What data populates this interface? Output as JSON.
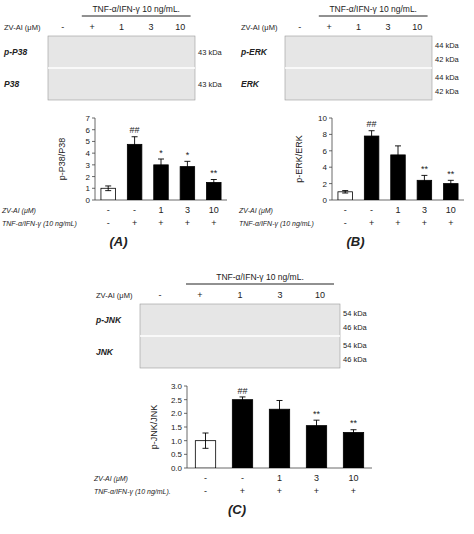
{
  "chart_data": [
    {
      "type": "bar",
      "title": "(A)",
      "y_label": "p-P38/P38",
      "categories": [
        "-",
        "-",
        "1",
        "3",
        "10"
      ],
      "category_label": "ZV-AI (μM)",
      "categories2": [
        "-",
        "+",
        "+",
        "+",
        "+"
      ],
      "category_label2": "TNF-α/IFN-γ (10 ng/mL)",
      "values": [
        1.0,
        4.75,
        3.0,
        2.85,
        1.5
      ],
      "errors": [
        0.2,
        0.65,
        0.5,
        0.45,
        0.25
      ],
      "colors": [
        "white",
        "black",
        "black",
        "black",
        "black"
      ],
      "annotations": [
        null,
        "##",
        "*",
        "*",
        "**"
      ],
      "ylim": [
        0,
        7
      ],
      "yticks": [
        0,
        1,
        2,
        3,
        4,
        5,
        6,
        7
      ],
      "grid": false,
      "blot": {
        "header": "TNF-α/IFN-γ 10 ng/mL.",
        "lane_label": "ZV-AI (μM)",
        "lanes": [
          "-",
          "+",
          "1",
          "3",
          "10"
        ],
        "rows": [
          {
            "name": "p-P38",
            "kda": [
              "43 kDa"
            ]
          },
          {
            "name": "P38",
            "kda": [
              "43 kDa"
            ]
          }
        ]
      }
    },
    {
      "type": "bar",
      "title": "(B)",
      "y_label": "p-ERK/ERK",
      "categories": [
        "-",
        "-",
        "1",
        "3",
        "10"
      ],
      "category_label": "ZV-AI (μM)",
      "categories2": [
        "-",
        "+",
        "+",
        "+",
        "+"
      ],
      "category_label2": "TNF-α/IFN-γ (10 ng/mL)",
      "values": [
        1.0,
        7.8,
        5.5,
        2.4,
        2.0
      ],
      "errors": [
        0.15,
        0.65,
        1.1,
        0.6,
        0.4
      ],
      "colors": [
        "white",
        "black",
        "black",
        "black",
        "black"
      ],
      "annotations": [
        null,
        "##",
        null,
        "**",
        "**"
      ],
      "ylim": [
        0,
        10
      ],
      "yticks": [
        0,
        2,
        4,
        6,
        8,
        10
      ],
      "grid": false,
      "blot": {
        "header": "TNF-α/IFN-γ 10 ng/mL.",
        "lane_label": "ZV-AI (μM)",
        "lanes": [
          "-",
          "+",
          "1",
          "3",
          "10"
        ],
        "rows": [
          {
            "name": "p-ERK",
            "kda": [
              "44 kDa",
              "42 kDa"
            ]
          },
          {
            "name": "ERK",
            "kda": [
              "44 kDa",
              "42 kDa"
            ]
          }
        ]
      }
    },
    {
      "type": "bar",
      "title": "(C)",
      "y_label": "p-JNK/JNK",
      "categories": [
        "-",
        "-",
        "1",
        "3",
        "10"
      ],
      "category_label": "ZV-AI (μM)",
      "categories2": [
        "-",
        "+",
        "+",
        "+",
        "+"
      ],
      "category_label2": "TNF-α/IFN-γ (10 ng/mL).",
      "values": [
        1.0,
        2.5,
        2.15,
        1.55,
        1.3
      ],
      "errors": [
        0.28,
        0.1,
        0.32,
        0.2,
        0.1
      ],
      "colors": [
        "white",
        "black",
        "black",
        "black",
        "black"
      ],
      "annotations": [
        null,
        "##",
        null,
        "**",
        "**"
      ],
      "ylim": [
        0,
        3.0
      ],
      "yticks": [
        {
          "value": 0.0,
          "label": "0.0"
        },
        {
          "value": 0.5,
          "label": "0.5"
        },
        {
          "value": 1.0,
          "label": "1.0"
        },
        {
          "value": 1.5,
          "label": "1.5"
        },
        {
          "value": 2.0,
          "label": "2.0"
        },
        {
          "value": 2.5,
          "label": "2.5"
        },
        {
          "value": 3.0,
          "label": "3.0"
        }
      ],
      "grid": false,
      "blot": {
        "header": "TNF-α/IFN-γ 10 ng/mL.",
        "lane_label": "ZV-AI (μM)",
        "lanes": [
          "-",
          "+",
          "1",
          "3",
          "10"
        ],
        "rows": [
          {
            "name": "p-JNK",
            "kda": [
              "54 kDa",
              "46 kDa"
            ]
          },
          {
            "name": "JNK",
            "kda": [
              "54 kDa",
              "46 kDa"
            ]
          }
        ]
      }
    }
  ]
}
